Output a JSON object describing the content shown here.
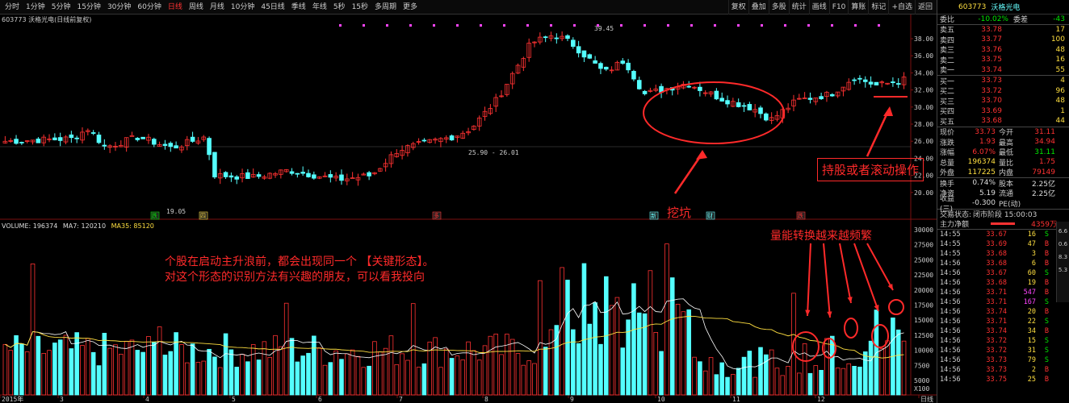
{
  "toolbar": {
    "tabs": [
      "分时",
      "1分钟",
      "5分钟",
      "15分钟",
      "30分钟",
      "60分钟",
      "日线",
      "周线",
      "月线",
      "10分钟",
      "45日线",
      "季线",
      "年线",
      "5秒",
      "15秒",
      "多周期",
      "更多"
    ],
    "active_tab": "日线",
    "right_tools": [
      "复权",
      "叠加",
      "多股",
      "统计",
      "画线",
      "F10",
      "算账",
      "标记",
      "+自选",
      "返回"
    ]
  },
  "chart_title": "603773 沃格光电(日线前复权)",
  "volume_line": {
    "vol_label": "VOLUME: 196374",
    "ma7": "MA7: 120210",
    "ma35": "MA35: 85120"
  },
  "price_axis": [
    "38.00",
    "36.00",
    "34.00",
    "32.00",
    "30.00",
    "28.00",
    "26.00",
    "24.00",
    "22.00",
    "20.00"
  ],
  "vol_axis": [
    "30000",
    "27500",
    "25000",
    "22500",
    "20000",
    "17500",
    "15000",
    "12500",
    "10000",
    "7500",
    "5000",
    "X100"
  ],
  "x_axis": [
    "2015年",
    "3",
    "4",
    "5",
    "6",
    "7",
    "8",
    "9",
    "10",
    "11",
    "12",
    "日线"
  ],
  "price_marks": {
    "high": "39.45",
    "low": "19.05",
    "mid": "25.90 - 26.01"
  },
  "event_marks": [
    "跌",
    "四",
    "多",
    "新",
    "财",
    "跌"
  ],
  "annotations": {
    "dig_pit": "挖坑",
    "hold": "持股或者滚动操作",
    "volume_switch": "量能转换越来越频繁",
    "key_form": "个股在启动主升浪前，都会出现同一个 【关键形态】。",
    "contact": "对这个形态的识别方法有兴趣的朋友，可以看我投向"
  },
  "quote": {
    "code": "603773",
    "name": "沃格光电",
    "weibi_label": "委比",
    "weibi": "-10.02%",
    "weicha_label": "委差",
    "weicha": "-43",
    "sells": [
      {
        "label": "卖五",
        "price": "33.78",
        "vol": "17"
      },
      {
        "label": "卖四",
        "price": "33.77",
        "vol": "100"
      },
      {
        "label": "卖三",
        "price": "33.76",
        "vol": "48"
      },
      {
        "label": "卖二",
        "price": "33.75",
        "vol": "16"
      },
      {
        "label": "卖一",
        "price": "33.74",
        "vol": "55"
      }
    ],
    "buys": [
      {
        "label": "买一",
        "price": "33.73",
        "vol": "4"
      },
      {
        "label": "买二",
        "price": "33.72",
        "vol": "96"
      },
      {
        "label": "买三",
        "price": "33.70",
        "vol": "48"
      },
      {
        "label": "买四",
        "price": "33.69",
        "vol": "1"
      },
      {
        "label": "买五",
        "price": "33.68",
        "vol": "44"
      }
    ],
    "stats": [
      {
        "a": "现价",
        "b": "33.73",
        "c": "今开",
        "d": "31.11"
      },
      {
        "a": "涨跌",
        "b": "1.93",
        "c": "最高",
        "d": "34.94"
      },
      {
        "a": "涨幅",
        "b": "6.07%",
        "c": "最低",
        "d": "31.11"
      },
      {
        "a": "总量",
        "b": "196374",
        "c": "量比",
        "d": "1.75"
      },
      {
        "a": "外盘",
        "b": "117225",
        "c": "内盘",
        "d": "79149"
      }
    ],
    "stats2": [
      {
        "a": "换手",
        "b": "0.74%",
        "c": "股本",
        "d": "2.25亿"
      },
      {
        "a": "净资",
        "b": "5.19",
        "c": "流通",
        "d": "2.25亿"
      },
      {
        "a": "收益(三)",
        "b": "-0.300",
        "c": "PE(动)",
        "d": ""
      }
    ],
    "status_label": "交易状态:",
    "status": "闭市阶段 15:00:03",
    "main_label": "主力净额",
    "main_val": "4359万",
    "trades": [
      {
        "t": "14:55",
        "p": "33.67",
        "v": "16",
        "s": "S"
      },
      {
        "t": "14:55",
        "p": "33.69",
        "v": "47",
        "s": "B"
      },
      {
        "t": "14:55",
        "p": "33.68",
        "v": "3",
        "s": "B"
      },
      {
        "t": "14:56",
        "p": "33.68",
        "v": "6",
        "s": "B"
      },
      {
        "t": "14:56",
        "p": "33.67",
        "v": "60",
        "s": "S"
      },
      {
        "t": "14:56",
        "p": "33.68",
        "v": "19",
        "s": "B"
      },
      {
        "t": "14:56",
        "p": "33.71",
        "v": "547",
        "s": "B"
      },
      {
        "t": "14:56",
        "p": "33.71",
        "v": "167",
        "s": "S"
      },
      {
        "t": "14:56",
        "p": "33.74",
        "v": "20",
        "s": "B"
      },
      {
        "t": "14:56",
        "p": "33.71",
        "v": "22",
        "s": "S"
      },
      {
        "t": "14:56",
        "p": "33.74",
        "v": "34",
        "s": "B"
      },
      {
        "t": "14:56",
        "p": "33.72",
        "v": "15",
        "s": "S"
      },
      {
        "t": "14:56",
        "p": "33.72",
        "v": "31",
        "s": "S"
      },
      {
        "t": "14:56",
        "p": "33.73",
        "v": "79",
        "s": "S"
      },
      {
        "t": "14:56",
        "p": "33.73",
        "v": "2",
        "s": "B"
      },
      {
        "t": "14:56",
        "p": "33.75",
        "v": "25",
        "s": "B"
      }
    ]
  },
  "strip": [
    "6.6",
    "0.6",
    "8.3",
    "5.3"
  ],
  "colors": {
    "up": "#ff3232",
    "down": "#54ffff",
    "ma_white": "#ffffff",
    "ma_yellow": "#ffdf40",
    "annot": "#ff2a2a"
  }
}
